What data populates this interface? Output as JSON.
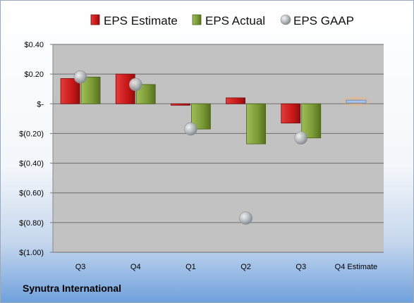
{
  "company": "Synutra International",
  "chart_data": {
    "type": "bar",
    "categories": [
      "Q3",
      "Q4",
      "Q1",
      "Q2",
      "Q3",
      "Q4 Estimate"
    ],
    "series": [
      {
        "name": "EPS Estimate",
        "kind": "bar",
        "color": "#cc1f1f",
        "values": [
          0.17,
          0.2,
          -0.01,
          0.04,
          -0.13,
          null
        ]
      },
      {
        "name": "EPS Actual",
        "kind": "bar",
        "color": "#7c9b3a",
        "values": [
          0.18,
          0.13,
          -0.17,
          -0.27,
          -0.23,
          null
        ]
      },
      {
        "name": "EPS GAAP",
        "kind": "marker",
        "color": "#a9aeb4",
        "values": [
          0.18,
          0.13,
          -0.17,
          -0.77,
          -0.23,
          null
        ]
      },
      {
        "name": "Q4 Estimate",
        "kind": "highlight",
        "color": "#a9c4e8",
        "values": [
          null,
          null,
          null,
          null,
          null,
          0.01
        ]
      }
    ],
    "yticks": [
      "$0.40",
      "$0.20",
      "$-",
      "$(0.20)",
      "$(0.40)",
      "$(0.60)",
      "$(0.80)",
      "$(1.00)"
    ],
    "ylim": [
      -1.0,
      0.4
    ],
    "grid": true,
    "legend_position": "top"
  }
}
